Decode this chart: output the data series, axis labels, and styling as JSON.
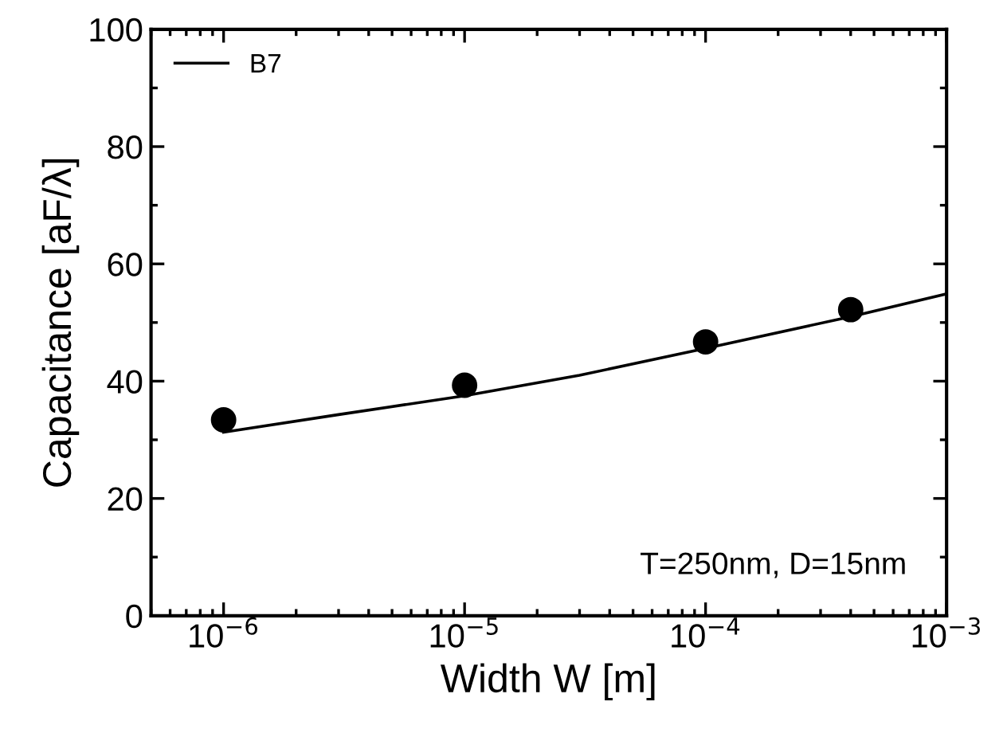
{
  "chart_data": {
    "type": "scatter",
    "xlabel": "Width W [m]",
    "ylabel": "Capacitance [aF/λ]",
    "log": "x",
    "xlim": [
      5e-07,
      0.001
    ],
    "xticks": [
      {
        "value": 1e-06,
        "label": "10$^{−6}$"
      },
      {
        "value": 1e-05,
        "label": "10$^{−5}$"
      },
      {
        "value": 0.0001,
        "label": "10$^{−4}$"
      },
      {
        "value": 0.001,
        "label": "10$^{−3}$"
      }
    ],
    "ylim": [
      0,
      100
    ],
    "yticks": [
      0,
      20,
      40,
      60,
      80,
      100
    ],
    "grid": false,
    "legend": "top left",
    "annotations": [
      "T=250nm, D=15nm"
    ],
    "series": [
      {
        "color": "#000000",
        "marker": "circle",
        "x": [
          1e-06,
          1e-05,
          0.0001,
          0.0004
        ],
        "values": [
          33.4,
          39.3,
          46.7,
          52.2
        ]
      },
      {
        "type": "line",
        "name": "B7",
        "color": "#000000",
        "marker": "none",
        "line_style": "solid",
        "x": [
          1e-06,
          3e-06,
          1e-05,
          3e-05,
          0.0001,
          0.0004,
          0.001
        ],
        "values": [
          31.3,
          34.3,
          37.5,
          41.0,
          45.6,
          51.0,
          54.9
        ]
      }
    ]
  }
}
